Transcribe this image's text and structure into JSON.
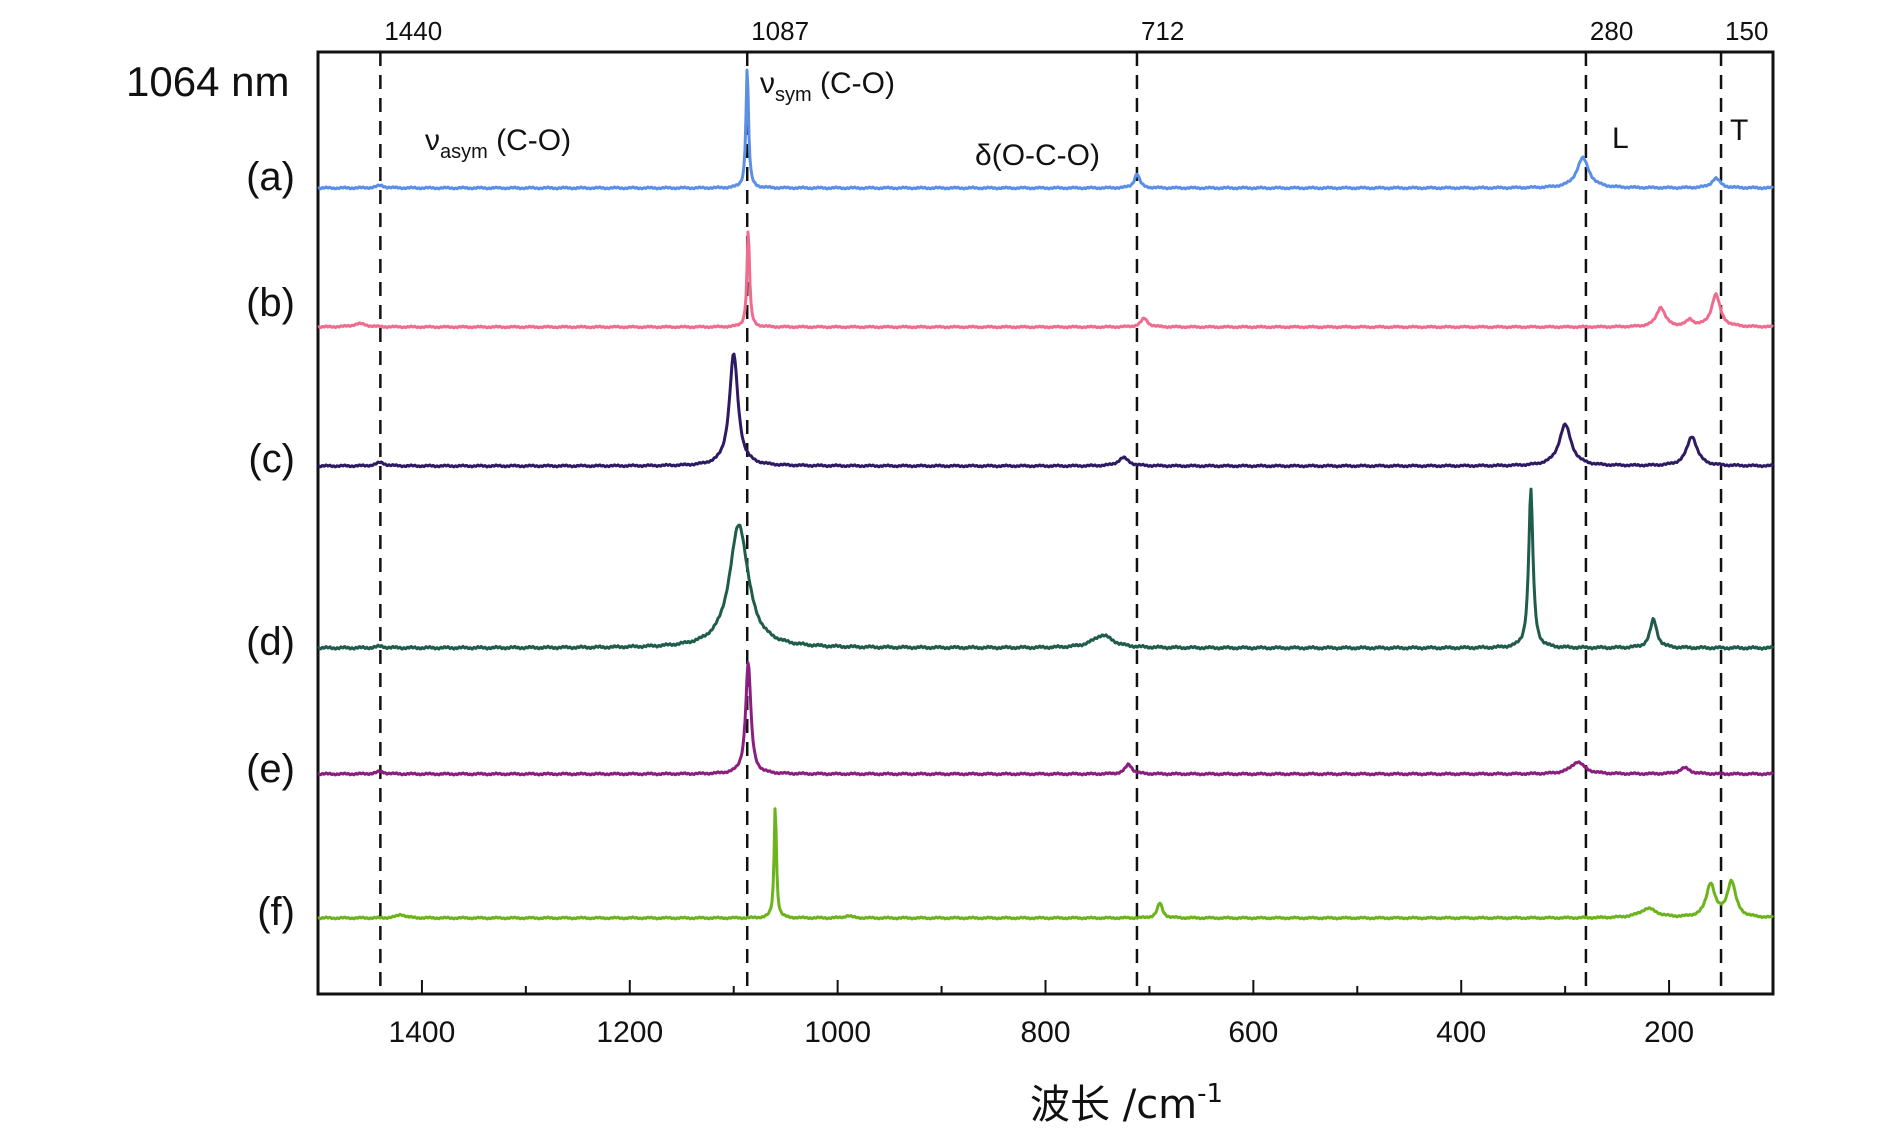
{
  "chart_data": {
    "type": "line",
    "title": "",
    "laser_label": "1064 nm",
    "xlabel": "波长 /cm",
    "xlabel_sup": "-1",
    "xlim": [
      1500,
      100
    ],
    "x_ticks": [
      1400,
      1200,
      1000,
      800,
      600,
      400,
      200
    ],
    "grid": false,
    "reference_lines": [
      {
        "x": 1440,
        "label": "1440"
      },
      {
        "x": 1087,
        "label": "1087"
      },
      {
        "x": 712,
        "label": "712"
      },
      {
        "x": 280,
        "label": "280"
      },
      {
        "x": 150,
        "label": "150"
      }
    ],
    "annotations": [
      {
        "main": "ν",
        "sub": "asym",
        "rest": " (C-O)",
        "x": 1440
      },
      {
        "main": "ν",
        "sub": "sym",
        "rest": " (C-O)",
        "x": 1087
      },
      {
        "main": "δ(O-C-O)",
        "sub": "",
        "rest": "",
        "x": 712
      },
      {
        "main": "L",
        "sub": "",
        "rest": "",
        "x": 280
      },
      {
        "main": "T",
        "sub": "",
        "rest": "",
        "x": 150
      }
    ],
    "series": [
      {
        "name": "(a)",
        "color": "#5b8fe6",
        "peaks": [
          {
            "x": 1087,
            "h": 1.0,
            "w": 1.5
          },
          {
            "x": 1440,
            "h": 0.02,
            "w": 5
          },
          {
            "x": 712,
            "h": 0.12,
            "w": 3
          },
          {
            "x": 283,
            "h": 0.25,
            "w": 7
          },
          {
            "x": 155,
            "h": 0.08,
            "w": 5
          }
        ]
      },
      {
        "name": "(b)",
        "color": "#ee6d8f",
        "peaks": [
          {
            "x": 1086,
            "h": 0.9,
            "w": 1.5
          },
          {
            "x": 1460,
            "h": 0.03,
            "w": 8
          },
          {
            "x": 705,
            "h": 0.08,
            "w": 4
          },
          {
            "x": 208,
            "h": 0.18,
            "w": 5
          },
          {
            "x": 180,
            "h": 0.06,
            "w": 4
          },
          {
            "x": 155,
            "h": 0.3,
            "w": 5
          }
        ]
      },
      {
        "name": "(c)",
        "color": "#2d1a63",
        "peaks": [
          {
            "x": 1100,
            "h": 0.95,
            "w": 5
          },
          {
            "x": 1440,
            "h": 0.03,
            "w": 5
          },
          {
            "x": 725,
            "h": 0.07,
            "w": 6
          },
          {
            "x": 300,
            "h": 0.35,
            "w": 7
          },
          {
            "x": 178,
            "h": 0.25,
            "w": 6
          }
        ]
      },
      {
        "name": "(d)",
        "color": "#1f5c4c",
        "peaks": [
          {
            "x": 1095,
            "h": 0.78,
            "w": 11
          },
          {
            "x": 1440,
            "h": 0.01,
            "w": 5
          },
          {
            "x": 745,
            "h": 0.08,
            "w": 12
          },
          {
            "x": 333,
            "h": 1.0,
            "w": 2.5
          },
          {
            "x": 215,
            "h": 0.18,
            "w": 4
          }
        ]
      },
      {
        "name": "(e)",
        "color": "#8b1f7f",
        "peaks": [
          {
            "x": 1086,
            "h": 0.93,
            "w": 3
          },
          {
            "x": 1440,
            "h": 0.02,
            "w": 5
          },
          {
            "x": 720,
            "h": 0.08,
            "w": 4
          },
          {
            "x": 288,
            "h": 0.1,
            "w": 8
          },
          {
            "x": 185,
            "h": 0.05,
            "w": 6
          }
        ]
      },
      {
        "name": "(f)",
        "color": "#6cb31c",
        "peaks": [
          {
            "x": 1060,
            "h": 1.0,
            "w": 1.3
          },
          {
            "x": 1420,
            "h": 0.03,
            "w": 5
          },
          {
            "x": 990,
            "h": 0.02,
            "w": 4
          },
          {
            "x": 690,
            "h": 0.13,
            "w": 3
          },
          {
            "x": 220,
            "h": 0.08,
            "w": 10
          },
          {
            "x": 160,
            "h": 0.29,
            "w": 5
          },
          {
            "x": 140,
            "h": 0.31,
            "w": 5
          }
        ]
      }
    ]
  }
}
